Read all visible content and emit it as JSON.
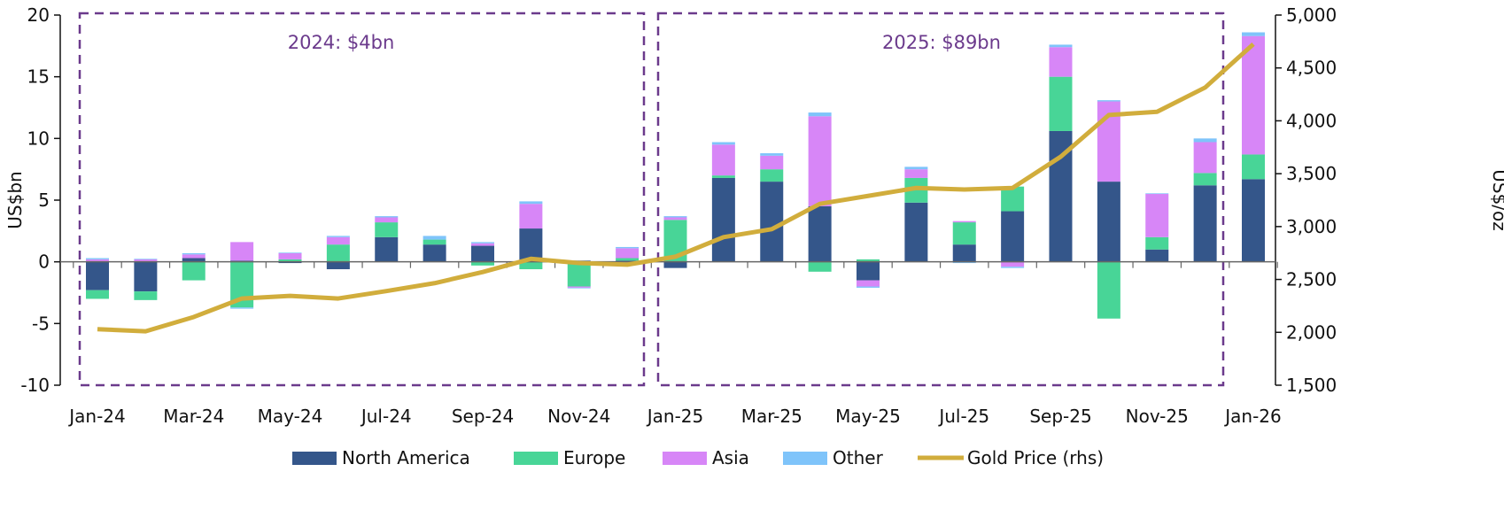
{
  "chart_data": {
    "type": "bar",
    "stacked": true,
    "categories": [
      "Jan-24",
      "Feb-24",
      "Mar-24",
      "Apr-24",
      "May-24",
      "Jun-24",
      "Jul-24",
      "Aug-24",
      "Sep-24",
      "Oct-24",
      "Nov-24",
      "Dec-24",
      "Jan-25",
      "Feb-25",
      "Mar-25",
      "Apr-25",
      "May-25",
      "Jun-25",
      "Jul-25",
      "Aug-25",
      "Sep-25",
      "Oct-25",
      "Nov-25",
      "Dec-25",
      "Jan-26"
    ],
    "x_tick_labels": [
      "Jan-24",
      "Mar-24",
      "May-24",
      "Jul-24",
      "Sep-24",
      "Nov-24",
      "Jan-25",
      "Mar-25",
      "May-25",
      "Jul-25",
      "Sep-25",
      "Nov-25",
      "Jan-26"
    ],
    "ylabel": "US$bn",
    "ylim": [
      -10,
      20
    ],
    "yticks": [
      -10,
      -5,
      0,
      5,
      10,
      15,
      20
    ],
    "y2label": "US$/oz",
    "y2lim": [
      1500,
      5000
    ],
    "y2ticks": [
      "1,500",
      "2,000",
      "2,500",
      "3,000",
      "3,500",
      "4,000",
      "4,500",
      "5,000"
    ],
    "legend_position": "bottom",
    "grid": false,
    "series": [
      {
        "name": "North America",
        "color": "#34568a",
        "values": [
          -2.3,
          -2.4,
          0.3,
          0.1,
          -0.1,
          -0.6,
          2.0,
          1.4,
          1.3,
          2.7,
          0.1,
          0.1,
          -0.5,
          6.8,
          6.5,
          4.5,
          -1.5,
          4.8,
          1.4,
          4.1,
          10.6,
          6.5,
          1.0,
          6.2,
          6.7
        ]
      },
      {
        "name": "Europe",
        "color": "#48d597",
        "values": [
          -0.7,
          -0.7,
          -1.5,
          -3.7,
          0.2,
          1.4,
          1.2,
          0.4,
          -0.3,
          -0.6,
          -2.0,
          0.2,
          3.4,
          0.2,
          1.0,
          -0.8,
          0.2,
          2.0,
          1.8,
          2.0,
          4.4,
          -4.6,
          1.0,
          1.0,
          2.0
        ]
      },
      {
        "name": "Asia",
        "color": "#d786f7",
        "values": [
          0.2,
          0.2,
          0.3,
          1.5,
          0.5,
          0.6,
          0.4,
          0.0,
          0.2,
          2.0,
          -0.1,
          0.8,
          0.2,
          2.5,
          1.1,
          7.3,
          -0.5,
          0.7,
          0.1,
          -0.4,
          2.4,
          6.5,
          3.5,
          2.5,
          9.6
        ]
      },
      {
        "name": "Other",
        "color": "#7fc4fa",
        "values": [
          0.1,
          0.05,
          0.1,
          -0.1,
          0.05,
          0.1,
          0.1,
          0.3,
          0.1,
          0.2,
          -0.05,
          0.1,
          0.1,
          0.2,
          0.2,
          0.3,
          -0.1,
          0.2,
          -0.1,
          -0.1,
          0.2,
          0.1,
          0.05,
          0.3,
          0.3
        ]
      },
      {
        "name": "Gold Price (rhs)",
        "type": "line",
        "axis": "right",
        "color": "#d1ad3c",
        "values": [
          2030,
          2010,
          2145,
          2320,
          2345,
          2320,
          2390,
          2465,
          2570,
          2695,
          2655,
          2640,
          2715,
          2900,
          2975,
          3215,
          3290,
          3365,
          3350,
          3365,
          3660,
          4055,
          4085,
          4315,
          4725
        ]
      }
    ],
    "annotations": [
      {
        "text": "2024: $4bn",
        "color": "#6b3a8c"
      },
      {
        "text": "2025: $89bn",
        "color": "#6b3a8c"
      }
    ]
  }
}
